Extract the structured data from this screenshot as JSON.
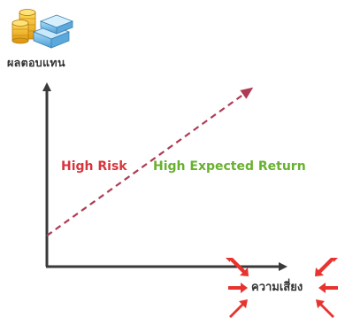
{
  "axes": {
    "y_label": "ผลตอบแทน",
    "x_label": "ความเสี่ยง"
  },
  "trend": {
    "risk_text": "High Risk",
    "return_text": "High Expected Return"
  },
  "colors": {
    "axis": "#3a3a3a",
    "trend_line": "#b03a55",
    "risk_text": "#d9343c",
    "return_text": "#68b12f",
    "burst_arrow": "#e8332f",
    "coin_gold": "#f2b01e",
    "box_blue": "#6fb8e8"
  },
  "icons": {
    "investment": "coins-and-boxes-icon",
    "risk_burst": "inward-arrows-burst-icon"
  }
}
